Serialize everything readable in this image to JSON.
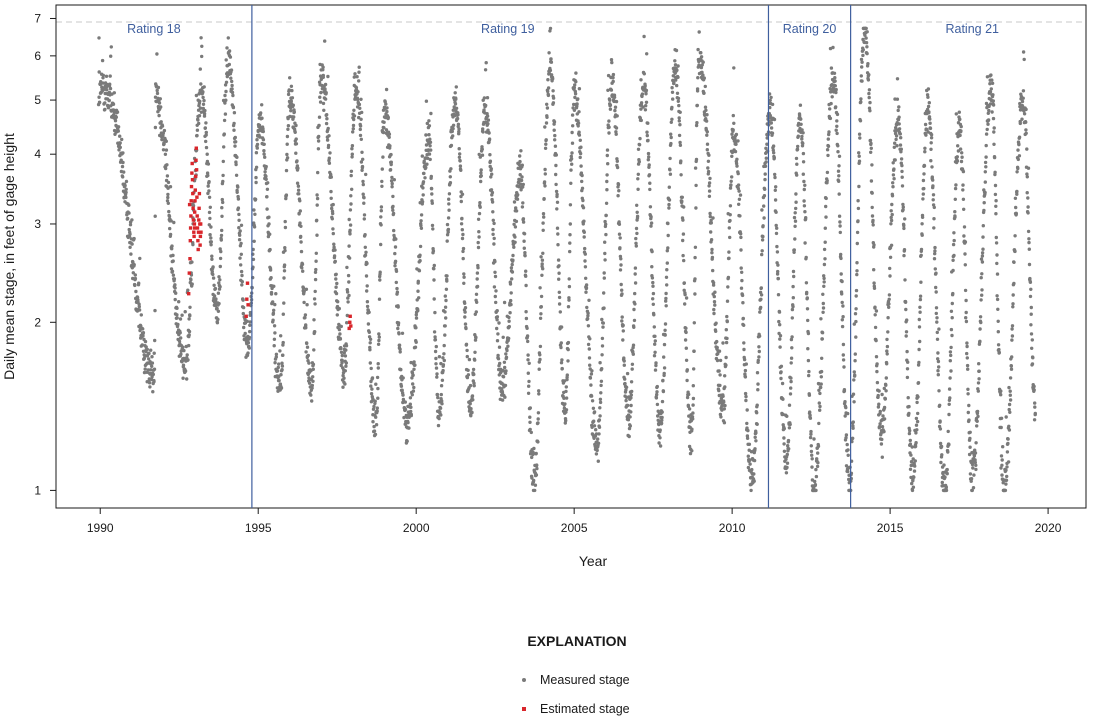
{
  "chart_data": {
    "type": "scatter",
    "xlabel": "Year",
    "ylabel": "Daily mean stage, in feet of gage height",
    "x_scale": "linear",
    "y_scale": "log",
    "xlim": [
      1988.6,
      2021.2
    ],
    "ylim": [
      0.93,
      7.4
    ],
    "x_ticks": [
      1990,
      1995,
      2000,
      2005,
      2010,
      2015,
      2020
    ],
    "x_tick_labels": [
      "1990",
      "1995",
      "2000",
      "2005",
      "2010",
      "2015",
      "2020"
    ],
    "y_ticks": [
      1,
      2,
      3,
      4,
      5,
      6,
      7
    ],
    "y_tick_labels": [
      "1",
      "2",
      "3",
      "4",
      "5",
      "6",
      "7"
    ],
    "grid": false,
    "reference_line_y": 6.9,
    "rating_breaks": [
      1994.8,
      2011.15,
      2013.75
    ],
    "rating_labels": [
      {
        "label": "Rating 18",
        "x": 1991.7
      },
      {
        "label": "Rating 19",
        "x": 2002.9
      },
      {
        "label": "Rating 20",
        "x": 2012.45
      },
      {
        "label": "Rating 21",
        "x": 2017.6
      }
    ],
    "series": [
      {
        "name": "Measured stage",
        "color": "#7a7a7a",
        "marker": "circle",
        "seasonal_cycles": [
          {
            "low_year": 1991.72,
            "low": 1.6,
            "peak_year": 1990.15,
            "peak": 5.2
          },
          {
            "low_year": 1992.68,
            "low": 1.68,
            "peak_year": 1991.75,
            "peak": 5.15
          },
          {
            "low_year": 1993.7,
            "low": 2.1,
            "peak_year": 1993.2,
            "peak": 5.15
          },
          {
            "low_year": 1994.68,
            "low": 1.82,
            "peak_year": 1994.05,
            "peak": 5.8
          },
          {
            "low_year": 1995.7,
            "low": 1.52,
            "peak_year": 1995.05,
            "peak": 4.55
          },
          {
            "low_year": 1996.7,
            "low": 1.55,
            "peak_year": 1996.0,
            "peak": 5.1
          },
          {
            "low_year": 1997.72,
            "low": 1.68,
            "peak_year": 1997.0,
            "peak": 5.5
          },
          {
            "low_year": 1998.72,
            "low": 1.32,
            "peak_year": 1998.1,
            "peak": 5.2
          },
          {
            "low_year": 1999.72,
            "low": 1.3,
            "peak_year": 1999.0,
            "peak": 4.75
          },
          {
            "low_year": 2000.72,
            "low": 1.38,
            "peak_year": 2000.4,
            "peak": 4.2
          },
          {
            "low_year": 2001.72,
            "low": 1.4,
            "peak_year": 2001.25,
            "peak": 4.95
          },
          {
            "low_year": 2002.72,
            "low": 1.55,
            "peak_year": 2002.2,
            "peak": 4.8
          },
          {
            "low_year": 2003.72,
            "low": 1.05,
            "peak_year": 2003.3,
            "peak": 3.65
          },
          {
            "low_year": 2004.72,
            "low": 1.38,
            "peak_year": 2004.25,
            "peak": 5.7
          },
          {
            "low_year": 2005.72,
            "low": 1.2,
            "peak_year": 2005.0,
            "peak": 5.1
          },
          {
            "low_year": 2006.72,
            "low": 1.35,
            "peak_year": 2006.2,
            "peak": 5.35
          },
          {
            "low_year": 2007.72,
            "low": 1.3,
            "peak_year": 2007.2,
            "peak": 5.35
          },
          {
            "low_year": 2008.72,
            "low": 1.25,
            "peak_year": 2008.2,
            "peak": 5.7
          },
          {
            "low_year": 2009.72,
            "low": 1.42,
            "peak_year": 2008.95,
            "peak": 6.05
          },
          {
            "low_year": 2010.62,
            "low": 1.05,
            "peak_year": 2010.05,
            "peak": 4.35
          },
          {
            "low_year": 2011.72,
            "low": 1.12,
            "peak_year": 2011.2,
            "peak": 4.8
          },
          {
            "low_year": 2012.6,
            "low": 1.0,
            "peak_year": 2012.15,
            "peak": 4.7
          },
          {
            "low_year": 2013.72,
            "low": 1.05,
            "peak_year": 2013.2,
            "peak": 5.5
          },
          {
            "low_year": 2014.72,
            "low": 1.25,
            "peak_year": 2014.2,
            "peak": 6.7
          },
          {
            "low_year": 2015.72,
            "low": 1.05,
            "peak_year": 2015.25,
            "peak": 4.65
          },
          {
            "low_year": 2016.72,
            "low": 1.0,
            "peak_year": 2016.2,
            "peak": 4.85
          },
          {
            "low_year": 2017.6,
            "low": 1.05,
            "peak_year": 2017.2,
            "peak": 4.45
          },
          {
            "low_year": 2018.6,
            "low": 1.0,
            "peak_year": 2018.2,
            "peak": 5.3
          },
          {
            "low_year": 2019.6,
            "low": 1.45,
            "peak_year": 2019.2,
            "peak": 5.05
          }
        ],
        "x_range": [
          1989.95,
          2019.6
        ]
      },
      {
        "name": "Estimated stage",
        "color": "#d9262b",
        "marker": "square",
        "points": [
          [
            1992.8,
            2.25
          ],
          [
            1992.82,
            2.45
          ],
          [
            1992.84,
            2.6
          ],
          [
            1992.85,
            2.8
          ],
          [
            1992.86,
            2.95
          ],
          [
            1992.87,
            3.1
          ],
          [
            1992.88,
            3.3
          ],
          [
            1992.89,
            3.5
          ],
          [
            1992.9,
            3.7
          ],
          [
            1992.91,
            3.85
          ],
          [
            1992.92,
            3.6
          ],
          [
            1992.93,
            3.4
          ],
          [
            1992.94,
            3.2
          ],
          [
            1992.95,
            3.05
          ],
          [
            1992.96,
            2.9
          ],
          [
            1992.97,
            2.85
          ],
          [
            1992.98,
            3.0
          ],
          [
            1992.99,
            3.15
          ],
          [
            1993.0,
            3.3
          ],
          [
            1993.01,
            3.45
          ],
          [
            1993.02,
            3.65
          ],
          [
            1993.03,
            3.9
          ],
          [
            1993.04,
            4.1
          ],
          [
            1993.05,
            3.75
          ],
          [
            1993.06,
            3.35
          ],
          [
            1993.07,
            3.1
          ],
          [
            1993.08,
            2.95
          ],
          [
            1993.09,
            2.8
          ],
          [
            1993.1,
            2.7
          ],
          [
            1993.11,
            2.9
          ],
          [
            1993.12,
            3.05
          ],
          [
            1993.13,
            3.2
          ],
          [
            1993.14,
            3.4
          ],
          [
            1993.15,
            3.0
          ],
          [
            1993.16,
            2.75
          ],
          [
            1993.17,
            2.85
          ],
          [
            1993.18,
            3.0
          ],
          [
            1993.19,
            2.9
          ],
          [
            1992.83,
            3.25
          ],
          [
            1992.99,
            2.95
          ],
          [
            1994.62,
            2.05
          ],
          [
            1994.64,
            2.2
          ],
          [
            1994.66,
            2.35
          ],
          [
            1994.68,
            2.15
          ],
          [
            1997.88,
            1.95
          ],
          [
            1997.9,
            2.0
          ],
          [
            1997.91,
            2.05
          ],
          [
            1997.93,
            1.97
          ]
        ]
      }
    ],
    "legend": {
      "title": "EXPLANATION",
      "position": "bottom-center",
      "entries": [
        {
          "label": "Measured stage",
          "series": "Measured stage"
        },
        {
          "label": "Estimated stage",
          "series": "Estimated stage"
        }
      ]
    }
  }
}
